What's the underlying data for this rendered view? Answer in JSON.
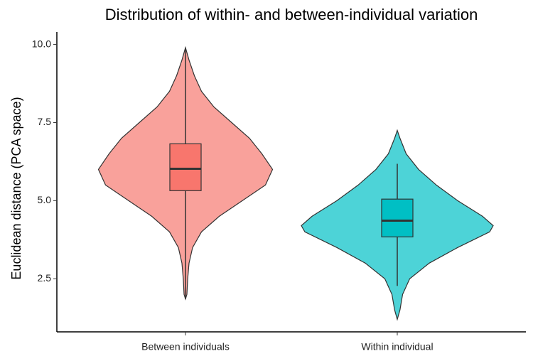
{
  "chart_data": {
    "type": "violin",
    "title": "Distribution of within- and between-individual variation",
    "y_label": "Euclidean distance (PCA space)",
    "categories": [
      "Between individuals",
      "Within individual"
    ],
    "ylim": [
      0.8,
      10.4
    ],
    "yticks": [
      2.5,
      {
        "value": 5,
        "label": "5.0"
      },
      7.5,
      {
        "value": 10,
        "label": "10.0"
      }
    ],
    "series": [
      {
        "name": "Between individuals",
        "color": "#f9a19b",
        "box_color": "#F8766D",
        "density_y": [
          9.9,
          9.5,
          9.0,
          8.5,
          8.0,
          7.5,
          7.0,
          6.5,
          6.0,
          5.5,
          5.0,
          4.5,
          4.0,
          3.5,
          3.0,
          2.5,
          2.0,
          1.85
        ],
        "density": [
          0,
          0.04,
          0.1,
          0.18,
          0.32,
          0.52,
          0.72,
          0.86,
          0.98,
          0.9,
          0.64,
          0.38,
          0.18,
          0.08,
          0.04,
          0.025,
          0.016,
          0
        ],
        "whisker_low": 1.85,
        "q1": 5.32,
        "median": 6.02,
        "q3": 6.82,
        "whisker_high": 9.9
      },
      {
        "name": "Within individual",
        "color": "#4dd3d7",
        "box_color": "#00BFC4",
        "density_y": [
          7.25,
          7.0,
          6.5,
          6.0,
          5.5,
          5.0,
          4.5,
          4.2,
          4.0,
          3.5,
          3.0,
          2.5,
          2.0,
          1.5,
          1.2
        ],
        "density": [
          0,
          0.03,
          0.1,
          0.24,
          0.44,
          0.68,
          0.96,
          1.08,
          1.04,
          0.68,
          0.36,
          0.14,
          0.06,
          0.03,
          0
        ],
        "whisker_low": 2.27,
        "q1": 3.84,
        "median": 4.36,
        "q3": 5.05,
        "whisker_high": 6.18
      }
    ]
  }
}
